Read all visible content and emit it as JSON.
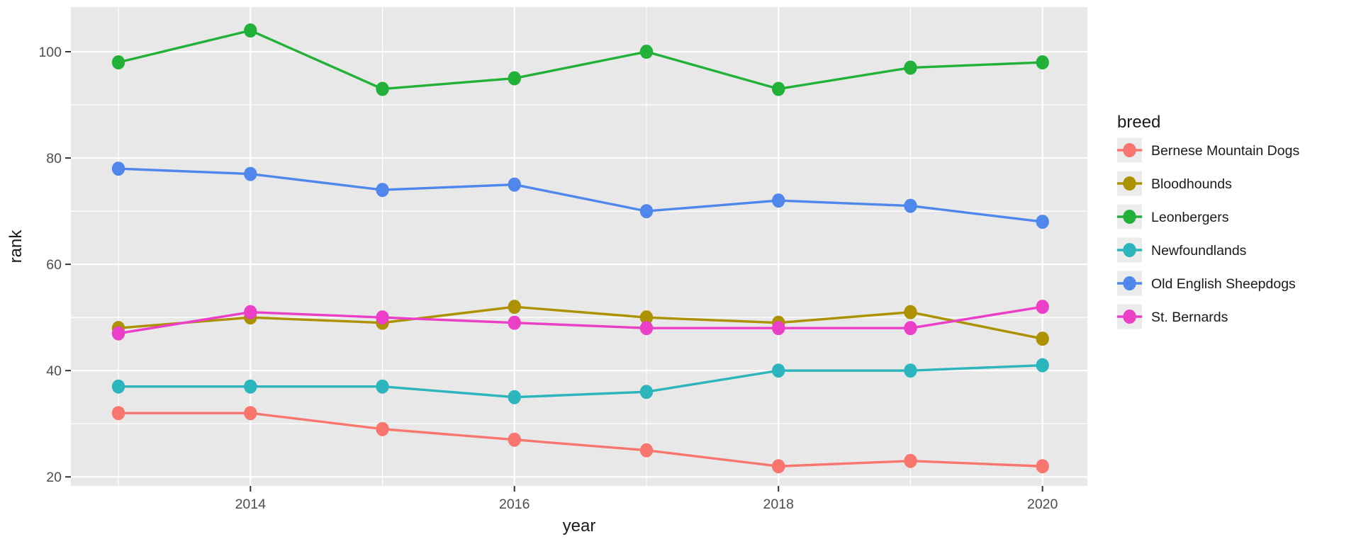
{
  "chart_data": {
    "type": "line",
    "title": "",
    "xlabel": "year",
    "ylabel": "rank",
    "x": [
      2013,
      2014,
      2015,
      2016,
      2017,
      2018,
      2019,
      2020
    ],
    "series": [
      {
        "name": "Bernese Mountain Dogs",
        "color": "#F8766D",
        "values": [
          32,
          32,
          29,
          27,
          25,
          22,
          23,
          22
        ]
      },
      {
        "name": "Bloodhounds",
        "color": "#AC9200",
        "values": [
          48,
          50,
          49,
          52,
          50,
          49,
          51,
          46
        ]
      },
      {
        "name": "Leonbergers",
        "color": "#22B138",
        "values": [
          98,
          104,
          93,
          95,
          100,
          93,
          97,
          98
        ]
      },
      {
        "name": "Newfoundlands",
        "color": "#2CB5BC",
        "values": [
          37,
          37,
          37,
          35,
          36,
          40,
          40,
          41
        ]
      },
      {
        "name": "Old English Sheepdogs",
        "color": "#5087EC",
        "values": [
          78,
          77,
          74,
          75,
          70,
          72,
          71,
          68
        ]
      },
      {
        "name": "St. Bernards",
        "color": "#EC3FC8",
        "values": [
          47,
          51,
          50,
          49,
          48,
          48,
          48,
          52
        ]
      }
    ],
    "x_ticks": [
      2014,
      2016,
      2018,
      2020
    ],
    "x_minor": [
      2013,
      2015,
      2017,
      2019
    ],
    "y_ticks": [
      20,
      40,
      60,
      80,
      100
    ],
    "y_minor": [
      30,
      50,
      70,
      90
    ],
    "xlim": [
      2012.64,
      2020.34
    ],
    "ylim": [
      18.3,
      108.4
    ],
    "grid": true,
    "legend_title": "breed",
    "legend_position": "right",
    "theme": {
      "figure_bg": "#FFFFFF",
      "panel_bg": "#E8E8E8",
      "grid_color": "#FFFFFF",
      "tick_mark_color": "#333333",
      "tick_label_color": "#4D4D4D",
      "axis_title_color": "#1A1A1A",
      "legend_key_bg": "#ECECEC"
    }
  }
}
